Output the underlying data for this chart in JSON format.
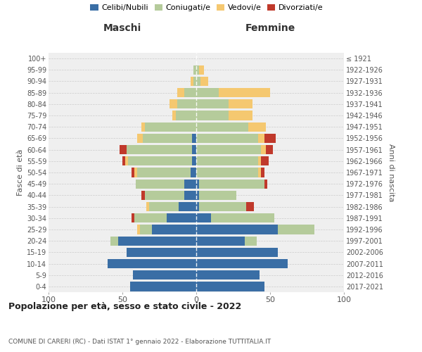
{
  "age_groups": [
    "0-4",
    "5-9",
    "10-14",
    "15-19",
    "20-24",
    "25-29",
    "30-34",
    "35-39",
    "40-44",
    "45-49",
    "50-54",
    "55-59",
    "60-64",
    "65-69",
    "70-74",
    "75-79",
    "80-84",
    "85-89",
    "90-94",
    "95-99",
    "100+"
  ],
  "birth_years": [
    "2017-2021",
    "2012-2016",
    "2007-2011",
    "2002-2006",
    "1997-2001",
    "1992-1996",
    "1987-1991",
    "1982-1986",
    "1977-1981",
    "1972-1976",
    "1967-1971",
    "1962-1966",
    "1957-1961",
    "1952-1956",
    "1947-1951",
    "1942-1946",
    "1937-1941",
    "1932-1936",
    "1927-1931",
    "1922-1926",
    "≤ 1921"
  ],
  "maschi": {
    "celibi": [
      45,
      43,
      60,
      47,
      53,
      30,
      20,
      12,
      8,
      8,
      4,
      3,
      3,
      3,
      0,
      0,
      0,
      0,
      0,
      0,
      0
    ],
    "coniugati": [
      0,
      0,
      0,
      0,
      5,
      8,
      22,
      20,
      27,
      33,
      36,
      43,
      44,
      33,
      35,
      14,
      13,
      8,
      2,
      2,
      0
    ],
    "vedovi": [
      0,
      0,
      0,
      0,
      0,
      2,
      0,
      2,
      0,
      0,
      2,
      2,
      0,
      4,
      2,
      2,
      5,
      5,
      2,
      0,
      0
    ],
    "divorziati": [
      0,
      0,
      0,
      0,
      0,
      0,
      2,
      0,
      2,
      0,
      2,
      2,
      5,
      0,
      0,
      0,
      0,
      0,
      0,
      0,
      0
    ]
  },
  "femmine": {
    "nubili": [
      46,
      43,
      62,
      55,
      33,
      55,
      10,
      2,
      2,
      2,
      0,
      0,
      0,
      0,
      0,
      0,
      0,
      0,
      0,
      0,
      0
    ],
    "coniugate": [
      0,
      0,
      0,
      0,
      8,
      25,
      43,
      32,
      25,
      44,
      42,
      42,
      44,
      42,
      35,
      22,
      22,
      15,
      3,
      2,
      0
    ],
    "vedove": [
      0,
      0,
      0,
      0,
      0,
      0,
      0,
      0,
      0,
      0,
      2,
      2,
      3,
      4,
      12,
      16,
      16,
      35,
      5,
      3,
      0
    ],
    "divorziate": [
      0,
      0,
      0,
      0,
      0,
      0,
      0,
      5,
      0,
      2,
      2,
      5,
      5,
      8,
      0,
      0,
      0,
      0,
      0,
      0,
      0
    ]
  },
  "colors": {
    "celibi": "#3a6ea5",
    "coniugati": "#b5cb9b",
    "vedovi": "#f5c870",
    "divorziati": "#c0392b"
  },
  "legend_labels": [
    "Celibi/Nubili",
    "Coniugati/e",
    "Vedovi/e",
    "Divorziati/e"
  ],
  "header_maschi": "Maschi",
  "header_femmine": "Femmine",
  "ylabel_left": "Fasce di età",
  "ylabel_right": "Anni di nascita",
  "title": "Popolazione per età, sesso e stato civile - 2022",
  "subtitle": "COMUNE DI CARERI (RC) - Dati ISTAT 1° gennaio 2022 - Elaborazione TUTTITALIA.IT",
  "xlim": 100,
  "bg_color": "#efefef",
  "fig_bg": "#ffffff",
  "grid_color": "#cccccc"
}
